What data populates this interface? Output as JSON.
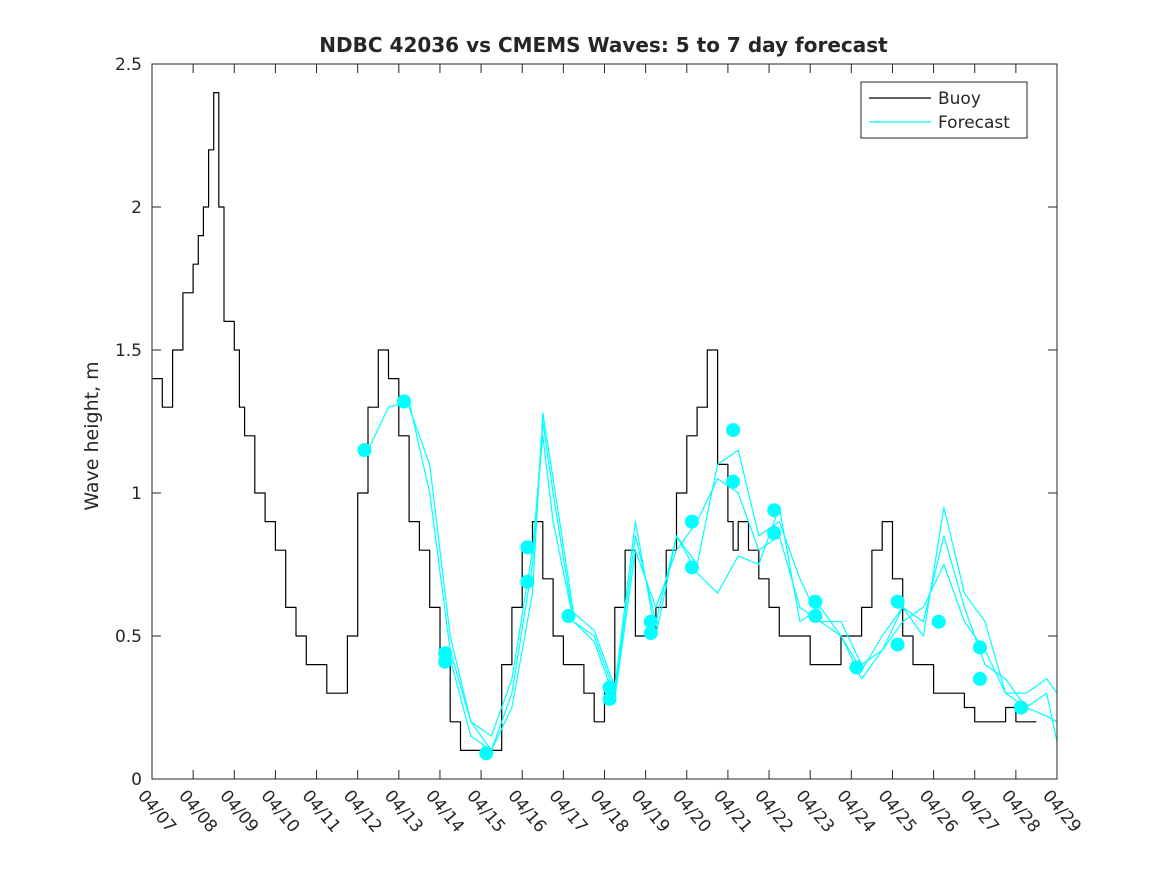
{
  "chart_data": {
    "type": "line",
    "title": "NDBC 42036 vs CMEMS Waves: 5 to 7 day forecast",
    "xlabel": "",
    "ylabel": "Wave height, m",
    "x_type": "date",
    "xlim": [
      "04/07",
      "04/29"
    ],
    "ylim": [
      0,
      2.5
    ],
    "x_tick_labels": [
      "04/07",
      "04/08",
      "04/09",
      "04/10",
      "04/11",
      "04/12",
      "04/13",
      "04/14",
      "04/15",
      "04/16",
      "04/17",
      "04/18",
      "04/19",
      "04/20",
      "04/21",
      "04/22",
      "04/23",
      "04/24",
      "04/25",
      "04/26",
      "04/27",
      "04/28",
      "04/29"
    ],
    "y_tick_values": [
      0,
      0.5,
      1,
      1.5,
      2,
      2.5
    ],
    "y_tick_labels": [
      "0",
      "0.5",
      "1",
      "1.5",
      "2",
      "2.5"
    ],
    "grid": false,
    "legend_position": "top-right",
    "colors": {
      "buoy": "#000000",
      "forecast": "#00ffff",
      "axes": "#262626"
    },
    "series": [
      {
        "name": "Buoy",
        "style": "step",
        "color": "#000000",
        "x": [
          "04/07 00:00",
          "04/07 06:00",
          "04/07 12:00",
          "04/07 18:00",
          "04/08 00:00",
          "04/08 03:00",
          "04/08 06:00",
          "04/08 09:00",
          "04/08 12:00",
          "04/08 15:00",
          "04/08 18:00",
          "04/09 00:00",
          "04/09 03:00",
          "04/09 06:00",
          "04/09 12:00",
          "04/09 18:00",
          "04/10 00:00",
          "04/10 06:00",
          "04/10 12:00",
          "04/10 18:00",
          "04/11 00:00",
          "04/11 06:00",
          "04/11 12:00",
          "04/11 18:00",
          "04/12 00:00",
          "04/12 06:00",
          "04/12 12:00",
          "04/12 18:00",
          "04/13 00:00",
          "04/13 06:00",
          "04/13 12:00",
          "04/13 18:00",
          "04/14 00:00",
          "04/14 06:00",
          "04/14 12:00",
          "04/14 18:00",
          "04/15 00:00",
          "04/15 06:00",
          "04/15 12:00",
          "04/15 18:00",
          "04/16 00:00",
          "04/16 06:00",
          "04/16 12:00",
          "04/16 18:00",
          "04/17 00:00",
          "04/17 06:00",
          "04/17 12:00",
          "04/17 18:00",
          "04/18 00:00",
          "04/18 06:00",
          "04/18 12:00",
          "04/18 18:00",
          "04/19 00:00",
          "04/19 06:00",
          "04/19 12:00",
          "04/19 18:00",
          "04/20 00:00",
          "04/20 06:00",
          "04/20 12:00",
          "04/20 18:00",
          "04/21 00:00",
          "04/21 03:00",
          "04/21 06:00",
          "04/21 12:00",
          "04/21 18:00",
          "04/22 00:00",
          "04/22 06:00",
          "04/22 12:00",
          "04/22 18:00",
          "04/23 00:00",
          "04/23 06:00",
          "04/23 12:00",
          "04/23 18:00",
          "04/24 00:00",
          "04/24 06:00",
          "04/24 12:00",
          "04/24 18:00",
          "04/25 00:00",
          "04/25 06:00",
          "04/25 12:00",
          "04/25 18:00",
          "04/26 00:00",
          "04/26 06:00",
          "04/26 12:00",
          "04/26 18:00",
          "04/27 00:00",
          "04/27 06:00",
          "04/27 12:00",
          "04/27 18:00",
          "04/28 00:00",
          "04/28 06:00",
          "04/28 12:00"
        ],
        "y": [
          1.4,
          1.3,
          1.5,
          1.7,
          1.8,
          1.9,
          2.0,
          2.2,
          2.4,
          2.0,
          1.6,
          1.5,
          1.3,
          1.2,
          1.0,
          0.9,
          0.8,
          0.6,
          0.5,
          0.4,
          0.4,
          0.3,
          0.3,
          0.5,
          1.0,
          1.3,
          1.5,
          1.4,
          1.2,
          0.9,
          0.8,
          0.6,
          0.4,
          0.2,
          0.1,
          0.1,
          0.1,
          0.1,
          0.4,
          0.6,
          0.8,
          0.9,
          0.7,
          0.5,
          0.4,
          0.4,
          0.3,
          0.2,
          0.3,
          0.6,
          0.8,
          0.5,
          0.5,
          0.6,
          0.8,
          1.0,
          1.2,
          1.3,
          1.5,
          1.1,
          0.9,
          0.8,
          0.9,
          0.8,
          0.7,
          0.6,
          0.5,
          0.5,
          0.5,
          0.4,
          0.4,
          0.4,
          0.5,
          0.5,
          0.6,
          0.8,
          0.9,
          0.7,
          0.5,
          0.4,
          0.4,
          0.3,
          0.3,
          0.3,
          0.25,
          0.2,
          0.2,
          0.2,
          0.25,
          0.2,
          0.2,
          0.2
        ]
      },
      {
        "name": "Forecast",
        "style": "line",
        "color": "#00ffff",
        "x": [
          "04/12 06:00",
          "04/12 18:00",
          "04/13 06:00",
          "04/13 18:00",
          "04/14 06:00",
          "04/14 18:00",
          "04/15 06:00",
          "04/15 18:00",
          "04/16 06:00",
          "04/16 12:00",
          "04/16 18:00",
          "04/17 06:00",
          "04/17 18:00",
          "04/18 06:00",
          "04/18 18:00",
          "04/19 06:00",
          "04/19 18:00",
          "04/20 06:00",
          "04/20 18:00",
          "04/21 06:00",
          "04/21 18:00",
          "04/22 06:00",
          "04/22 18:00",
          "04/23 06:00",
          "04/23 18:00",
          "04/24 06:00",
          "04/24 18:00",
          "04/25 06:00",
          "04/25 18:00",
          "04/26 06:00",
          "04/26 18:00",
          "04/27 06:00",
          "04/27 18:00",
          "04/28 06:00",
          "04/28 18:00",
          "04/29 00:00"
        ],
        "y": [
          1.15,
          1.3,
          1.32,
          1.0,
          0.45,
          0.2,
          0.1,
          0.3,
          0.75,
          1.25,
          1.0,
          0.55,
          0.5,
          0.3,
          0.85,
          0.55,
          0.85,
          0.75,
          1.1,
          1.15,
          0.85,
          0.9,
          0.7,
          0.55,
          0.5,
          0.38,
          0.5,
          0.6,
          0.55,
          0.85,
          0.6,
          0.4,
          0.35,
          0.25,
          0.22,
          0.2
        ]
      },
      {
        "name": "Forecast",
        "style": "line",
        "color": "#00ffff",
        "x": [
          "04/13 06:00",
          "04/13 18:00",
          "04/14 06:00",
          "04/14 18:00",
          "04/15 06:00",
          "04/15 18:00",
          "04/16 06:00",
          "04/16 12:00",
          "04/16 18:00",
          "04/17 06:00",
          "04/17 18:00",
          "04/18 06:00",
          "04/18 18:00",
          "04/19 06:00",
          "04/19 18:00",
          "04/20 06:00",
          "04/20 18:00",
          "04/21 06:00",
          "04/21 18:00",
          "04/22 06:00",
          "04/22 18:00",
          "04/23 06:00",
          "04/23 18:00",
          "04/24 06:00",
          "04/24 18:00",
          "04/25 06:00",
          "04/25 18:00",
          "04/26 06:00",
          "04/26 18:00",
          "04/27 06:00",
          "04/27 18:00",
          "04/28 06:00",
          "04/28 18:00",
          "04/29 00:00"
        ],
        "y": [
          1.3,
          1.1,
          0.5,
          0.2,
          0.15,
          0.35,
          0.8,
          1.2,
          0.9,
          0.55,
          0.48,
          0.28,
          0.8,
          0.6,
          0.8,
          0.9,
          1.05,
          1.0,
          0.8,
          0.85,
          0.6,
          0.55,
          0.55,
          0.4,
          0.45,
          0.55,
          0.6,
          0.75,
          0.55,
          0.45,
          0.3,
          0.3,
          0.35,
          0.3
        ]
      },
      {
        "name": "Forecast",
        "style": "line",
        "color": "#00ffff",
        "x": [
          "04/14 06:00",
          "04/14 18:00",
          "04/15 06:00",
          "04/15 18:00",
          "04/16 06:00",
          "04/16 12:00",
          "04/16 18:00",
          "04/17 06:00",
          "04/17 18:00",
          "04/18 06:00",
          "04/18 18:00",
          "04/19 06:00",
          "04/19 18:00",
          "04/20 06:00",
          "04/20 18:00",
          "04/21 06:00",
          "04/21 18:00",
          "04/22 06:00",
          "04/22 18:00",
          "04/23 06:00",
          "04/23 18:00",
          "04/24 06:00",
          "04/24 18:00",
          "04/25 06:00",
          "04/25 18:00",
          "04/26 06:00",
          "04/26 18:00",
          "04/27 06:00",
          "04/27 18:00",
          "04/28 06:00",
          "04/28 18:00",
          "04/29 00:00"
        ],
        "y": [
          0.42,
          0.15,
          0.1,
          0.25,
          0.65,
          1.28,
          1.05,
          0.58,
          0.52,
          0.32,
          0.9,
          0.5,
          0.85,
          0.72,
          0.65,
          0.78,
          0.75,
          0.95,
          0.55,
          0.6,
          0.5,
          0.35,
          0.45,
          0.6,
          0.5,
          0.95,
          0.65,
          0.55,
          0.3,
          0.25,
          0.3,
          0.13
        ]
      }
    ],
    "forecast_markers": {
      "x": [
        "04/12 04:00",
        "04/13 03:00",
        "04/14 03:00",
        "04/14 03:00",
        "04/15 03:00",
        "04/16 03:00",
        "04/16 03:00",
        "04/17 03:00",
        "04/18 03:00",
        "04/18 03:00",
        "04/19 03:00",
        "04/19 03:00",
        "04/20 03:00",
        "04/20 03:00",
        "04/21 03:00",
        "04/21 03:00",
        "04/22 03:00",
        "04/22 03:00",
        "04/23 03:00",
        "04/23 03:00",
        "04/24 03:00",
        "04/25 03:00",
        "04/25 03:00",
        "04/26 03:00",
        "04/27 03:00",
        "04/27 03:00",
        "04/28 03:00"
      ],
      "y": [
        1.15,
        1.32,
        0.44,
        0.41,
        0.09,
        0.81,
        0.69,
        0.57,
        0.32,
        0.28,
        0.55,
        0.51,
        0.9,
        0.74,
        1.22,
        1.04,
        0.94,
        0.86,
        0.62,
        0.57,
        0.39,
        0.62,
        0.47,
        0.55,
        0.46,
        0.35,
        0.25
      ]
    }
  }
}
